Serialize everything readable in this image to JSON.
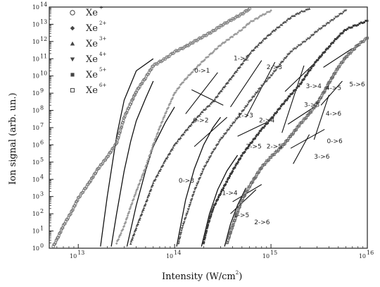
{
  "chart_data": {
    "type": "scatter",
    "title": "",
    "xlabel": "Intensity (W/cm",
    "xlabel_sup": "2",
    "xlabel_tail": ")",
    "ylabel": "Ion signal (arb. un.)",
    "x_scale": "log",
    "y_scale": "log",
    "xlim": [
      5000000000000.0,
      1e+16
    ],
    "ylim_decades": [
      0,
      14
    ],
    "x_ticks": [
      {
        "value": 10000000000000.0,
        "base": "10",
        "exp": "13"
      },
      {
        "value": 100000000000000.0,
        "base": "10",
        "exp": "14"
      },
      {
        "value": 1000000000000000.0,
        "base": "10",
        "exp": "15"
      },
      {
        "value": 1e+16,
        "base": "10",
        "exp": "16"
      }
    ],
    "y_tick_base": "10",
    "grid": false,
    "legend_position": "top-left",
    "series": [
      {
        "name": "Xe",
        "charge": "+",
        "marker": "circle",
        "color": "#7a7a7a",
        "points": [
          [
            5500000000000.0,
            0.1
          ],
          [
            6000000000000.0,
            0.5
          ],
          [
            7000000000000.0,
            1.3
          ],
          [
            8500000000000.0,
            2.1
          ],
          [
            10000000000000.0,
            2.9
          ],
          [
            13000000000000.0,
            3.8
          ],
          [
            16000000000000.0,
            4.6
          ],
          [
            20000000000000.0,
            5.3
          ],
          [
            25000000000000.0,
            6.1
          ],
          [
            30000000000000.0,
            7.6
          ],
          [
            35000000000000.0,
            8.4
          ],
          [
            40000000000000.0,
            9.1
          ],
          [
            50000000000000.0,
            9.9
          ],
          [
            60000000000000.0,
            10.6
          ],
          [
            80000000000000.0,
            11.0
          ],
          [
            100000000000000.0,
            11.4
          ],
          [
            130000000000000.0,
            11.7
          ],
          [
            160000000000000.0,
            12.0
          ],
          [
            200000000000000.0,
            12.3
          ],
          [
            250000000000000.0,
            12.6
          ],
          [
            300000000000000.0,
            12.9
          ],
          [
            400000000000000.0,
            13.3
          ],
          [
            500000000000000.0,
            13.6
          ],
          [
            600000000000000.0,
            13.9
          ]
        ]
      },
      {
        "name": "Xe",
        "charge": "2+",
        "marker": "diamond",
        "color": "#9a9a9a",
        "points": [
          [
            25000000000000.0,
            0.3
          ],
          [
            30000000000000.0,
            1.3
          ],
          [
            35000000000000.0,
            2.4
          ],
          [
            40000000000000.0,
            3.3
          ],
          [
            50000000000000.0,
            4.7
          ],
          [
            60000000000000.0,
            6.0
          ],
          [
            70000000000000.0,
            7.0
          ],
          [
            80000000000000.0,
            7.8
          ],
          [
            100000000000000.0,
            9.0
          ],
          [
            120000000000000.0,
            9.6
          ],
          [
            150000000000000.0,
            10.2
          ],
          [
            200000000000000.0,
            10.9
          ],
          [
            250000000000000.0,
            11.4
          ],
          [
            300000000000000.0,
            11.8
          ],
          [
            400000000000000.0,
            12.3
          ],
          [
            500000000000000.0,
            12.7
          ],
          [
            600000000000000.0,
            13.1
          ],
          [
            800000000000000.0,
            13.5
          ],
          [
            1000000000000000.0,
            13.8
          ]
        ]
      },
      {
        "name": "Xe",
        "charge": "3+",
        "marker": "triangle-up",
        "color": "#4a4a4a",
        "points": [
          [
            35000000000000.0,
            0.3
          ],
          [
            40000000000000.0,
            1.2
          ],
          [
            50000000000000.0,
            2.6
          ],
          [
            60000000000000.0,
            3.8
          ],
          [
            80000000000000.0,
            5.1
          ],
          [
            100000000000000.0,
            6.0
          ],
          [
            130000000000000.0,
            6.8
          ],
          [
            160000000000000.0,
            7.4
          ],
          [
            200000000000000.0,
            8.0
          ],
          [
            250000000000000.0,
            8.5
          ],
          [
            300000000000000.0,
            9.1
          ],
          [
            400000000000000.0,
            10.0
          ],
          [
            500000000000000.0,
            10.7
          ],
          [
            600000000000000.0,
            11.3
          ],
          [
            800000000000000.0,
            12.0
          ],
          [
            1000000000000000.0,
            12.5
          ],
          [
            1300000000000000.0,
            13.0
          ],
          [
            1600000000000000.0,
            13.4
          ],
          [
            2000000000000000.0,
            13.7
          ],
          [
            2500000000000000.0,
            13.9
          ]
        ]
      },
      {
        "name": "Xe",
        "charge": "4+",
        "marker": "triangle-down",
        "color": "#555555",
        "points": [
          [
            110000000000000.0,
            0.3
          ],
          [
            120000000000000.0,
            1.2
          ],
          [
            140000000000000.0,
            2.3
          ],
          [
            160000000000000.0,
            3.3
          ],
          [
            200000000000000.0,
            4.6
          ],
          [
            250000000000000.0,
            5.6
          ],
          [
            300000000000000.0,
            6.3
          ],
          [
            400000000000000.0,
            7.2
          ],
          [
            500000000000000.0,
            7.9
          ],
          [
            600000000000000.0,
            8.5
          ],
          [
            800000000000000.0,
            9.4
          ],
          [
            1000000000000000.0,
            10.0
          ],
          [
            1300000000000000.0,
            10.8
          ],
          [
            1600000000000000.0,
            11.4
          ],
          [
            2000000000000000.0,
            11.8
          ],
          [
            2500000000000000.0,
            12.2
          ],
          [
            3000000000000000.0,
            12.6
          ],
          [
            4000000000000000.0,
            13.1
          ],
          [
            5000000000000000.0,
            13.5
          ],
          [
            6000000000000000.0,
            13.8
          ]
        ]
      },
      {
        "name": "Xe",
        "charge": "5+",
        "marker": "square",
        "color": "#3a3a3a",
        "points": [
          [
            200000000000000.0,
            0.3
          ],
          [
            220000000000000.0,
            1.3
          ],
          [
            250000000000000.0,
            2.3
          ],
          [
            300000000000000.0,
            3.2
          ],
          [
            350000000000000.0,
            3.9
          ],
          [
            400000000000000.0,
            4.5
          ],
          [
            500000000000000.0,
            5.4
          ],
          [
            600000000000000.0,
            6.0
          ],
          [
            800000000000000.0,
            6.9
          ],
          [
            1000000000000000.0,
            7.5
          ],
          [
            1300000000000000.0,
            8.3
          ],
          [
            1600000000000000.0,
            8.9
          ],
          [
            2000000000000000.0,
            9.5
          ],
          [
            2500000000000000.0,
            10.3
          ],
          [
            3000000000000000.0,
            10.9
          ],
          [
            4000000000000000.0,
            11.7
          ],
          [
            5000000000000000.0,
            12.3
          ],
          [
            6000000000000000.0,
            12.7
          ],
          [
            8000000000000000.0,
            13.0
          ],
          [
            1e+16,
            13.2
          ]
        ]
      },
      {
        "name": "Xe",
        "charge": "6+",
        "marker": "square-open",
        "color": "#6a6a6a",
        "points": [
          [
            350000000000000.0,
            0.3
          ],
          [
            400000000000000.0,
            1.3
          ],
          [
            450000000000000.0,
            2.1
          ],
          [
            500000000000000.0,
            2.8
          ],
          [
            600000000000000.0,
            3.6
          ],
          [
            700000000000000.0,
            4.2
          ],
          [
            800000000000000.0,
            4.7
          ],
          [
            1000000000000000.0,
            5.3
          ],
          [
            1300000000000000.0,
            5.9
          ],
          [
            1600000000000000.0,
            6.5
          ],
          [
            2000000000000000.0,
            7.2
          ],
          [
            2500000000000000.0,
            7.8
          ],
          [
            3000000000000000.0,
            8.4
          ],
          [
            3500000000000000.0,
            9.0
          ],
          [
            4000000000000000.0,
            9.6
          ],
          [
            5000000000000000.0,
            10.5
          ],
          [
            6000000000000000.0,
            11.1
          ],
          [
            8000000000000000.0,
            11.8
          ],
          [
            1e+16,
            12.2
          ]
        ]
      }
    ],
    "fit_curves": [
      {
        "points": [
          [
            17000000000000.0,
            0.1
          ],
          [
            20000000000000.0,
            3.0
          ],
          [
            25000000000000.0,
            6.5
          ],
          [
            30000000000000.0,
            8.6
          ],
          [
            40000000000000.0,
            10.3
          ],
          [
            60000000000000.0,
            11.0
          ]
        ]
      },
      {
        "points": [
          [
            22000000000000.0,
            0.1
          ],
          [
            25000000000000.0,
            2.0
          ],
          [
            30000000000000.0,
            4.5
          ],
          [
            35000000000000.0,
            6.2
          ],
          [
            40000000000000.0,
            7.4
          ],
          [
            50000000000000.0,
            8.7
          ],
          [
            60000000000000.0,
            9.7
          ]
        ]
      },
      {
        "points": [
          [
            32000000000000.0,
            0.1
          ],
          [
            40000000000000.0,
            2.5
          ],
          [
            50000000000000.0,
            4.5
          ],
          [
            60000000000000.0,
            5.9
          ],
          [
            80000000000000.0,
            7.3
          ],
          [
            100000000000000.0,
            8.2
          ]
        ]
      },
      {
        "points": [
          [
            105000000000000.0,
            0.1
          ],
          [
            130000000000000.0,
            2.8
          ],
          [
            160000000000000.0,
            4.6
          ],
          [
            200000000000000.0,
            6.0
          ],
          [
            250000000000000.0,
            7.0
          ],
          [
            300000000000000.0,
            7.6
          ]
        ]
      },
      {
        "points": [
          [
            190000000000000.0,
            0.1
          ],
          [
            230000000000000.0,
            2.0
          ],
          [
            280000000000000.0,
            3.4
          ],
          [
            350000000000000.0,
            4.5
          ],
          [
            450000000000000.0,
            5.4
          ]
        ]
      },
      {
        "points": [
          [
            330000000000000.0,
            0.1
          ],
          [
            380000000000000.0,
            1.4
          ],
          [
            450000000000000.0,
            2.5
          ],
          [
            550000000000000.0,
            3.5
          ]
        ]
      }
    ],
    "tangent_lines": [
      {
        "points": [
          [
            130000000000000.0,
            7.8
          ],
          [
            280000000000000.0,
            10.2
          ]
        ]
      },
      {
        "points": [
          [
            150000000000000.0,
            9.2
          ],
          [
            320000000000000.0,
            8.3
          ]
        ]
      },
      {
        "points": [
          [
            160000000000000.0,
            5.9
          ],
          [
            350000000000000.0,
            7.6
          ]
        ]
      },
      {
        "points": [
          [
            380000000000000.0,
            8.2
          ],
          [
            800000000000000.0,
            10.9
          ]
        ]
      },
      {
        "points": [
          [
            550000000000000.0,
            7.6
          ],
          [
            1100000000000000.0,
            10.8
          ]
        ]
      },
      {
        "points": [
          [
            450000000000000.0,
            6.5
          ],
          [
            900000000000000.0,
            7.3
          ]
        ]
      },
      {
        "points": [
          [
            400000000000000.0,
            2.7
          ],
          [
            800000000000000.0,
            3.7
          ]
        ]
      },
      {
        "points": [
          [
            380000000000000.0,
            2.0
          ],
          [
            700000000000000.0,
            3.4
          ]
        ]
      },
      {
        "points": [
          [
            1300000000000000.0,
            6.7
          ],
          [
            2200000000000000.0,
            10.6
          ]
        ]
      },
      {
        "points": [
          [
            1400000000000000.0,
            9.1
          ],
          [
            3300000000000000.0,
            11.1
          ]
        ]
      },
      {
        "points": [
          [
            1500000000000000.0,
            7.2
          ],
          [
            3000000000000000.0,
            8.3
          ]
        ]
      },
      {
        "points": [
          [
            1600000000000000.0,
            5.8
          ],
          [
            3600000000000000.0,
            6.9
          ]
        ]
      },
      {
        "points": [
          [
            2800000000000000.0,
            6.3
          ],
          [
            4000000000000000.0,
            8.9
          ]
        ]
      },
      {
        "points": [
          [
            3300000000000000.0,
            8.3
          ],
          [
            5500000000000000.0,
            9.7
          ]
        ]
      },
      {
        "points": [
          [
            3500000000000000.0,
            10.5
          ],
          [
            7000000000000000.0,
            11.6
          ]
        ]
      },
      {
        "points": [
          [
            1700000000000000.0,
            4.9
          ],
          [
            2500000000000000.0,
            6.6
          ]
        ]
      }
    ],
    "process_labels": [
      {
        "text": "0->1",
        "x": 160000000000000.0,
        "y": 10.2
      },
      {
        "text": "0->2",
        "x": 155000000000000.0,
        "y": 7.3
      },
      {
        "text": "0->3",
        "x": 110000000000000.0,
        "y": 3.8
      },
      {
        "text": "1->2",
        "x": 410000000000000.0,
        "y": 10.9
      },
      {
        "text": "1->3",
        "x": 450000000000000.0,
        "y": 7.6
      },
      {
        "text": "1->4",
        "x": 310000000000000.0,
        "y": 3.1
      },
      {
        "text": "1->5",
        "x": 410000000000000.0,
        "y": 1.8
      },
      {
        "text": "2->3",
        "x": 900000000000000.0,
        "y": 10.4
      },
      {
        "text": "2->4",
        "x": 750000000000000.0,
        "y": 7.3
      },
      {
        "text": "2->5",
        "x": 900000000000000.0,
        "y": 5.8
      },
      {
        "text": "2->6",
        "x": 670000000000000.0,
        "y": 1.4
      },
      {
        "text": "3->4",
        "x": 2300000000000000.0,
        "y": 9.3
      },
      {
        "text": "3->5",
        "x": 2200000000000000.0,
        "y": 8.2
      },
      {
        "text": "3->6",
        "x": 2800000000000000.0,
        "y": 5.2
      },
      {
        "text": "4->5",
        "x": 3700000000000000.0,
        "y": 9.2
      },
      {
        "text": "4->6",
        "x": 3700000000000000.0,
        "y": 7.7
      },
      {
        "text": "5->6",
        "x": 6500000000000000.0,
        "y": 9.4
      },
      {
        "text": "0->6",
        "x": 3800000000000000.0,
        "y": 6.1
      },
      {
        "text": "2->5",
        "x": 550000000000000.0,
        "y": 5.8
      }
    ]
  }
}
